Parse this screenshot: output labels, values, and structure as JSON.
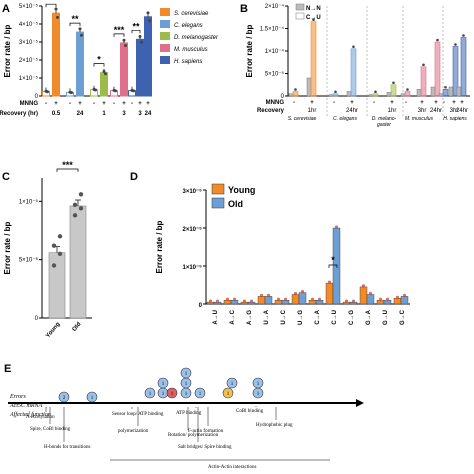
{
  "panels": {
    "A": "A",
    "B": "B",
    "C": "C",
    "D": "D",
    "E": "E"
  },
  "colors": {
    "S. cerevisiae": "#f08a2b",
    "C. elegans": "#6b9fd6",
    "D. melanogaster": "#9dbb4a",
    "M. musculus": "#e06f8b",
    "H. sapiens": "#3d62b0",
    "young": "#f08a2b",
    "old": "#6b9fd6",
    "C_old_bar": "#c8c8c8"
  },
  "chart_data": [
    {
      "panel": "A",
      "type": "bar",
      "ylabel": "Error rate / bp",
      "ylim": [
        0,
        5e-05
      ],
      "yticks": [
        "0",
        "1×10⁻⁵",
        "2×10⁻⁵",
        "3×10⁻⁵",
        "4×10⁻⁵",
        "5×10⁻⁵"
      ],
      "row_labels": {
        "mnng": "MNNG",
        "recovery": "Recovery (hr)"
      },
      "legend": [
        "S. cerevisiae",
        "C. elegans",
        "D. melanogaster",
        "M. musculus",
        "H. sapiens"
      ],
      "bars": [
        {
          "species": "S. cerevisiae",
          "mnng": "-",
          "recovery": "",
          "value": 2.5e-06
        },
        {
          "species": "S. cerevisiae",
          "mnng": "+",
          "recovery": "0.5",
          "value": 4.6e-05
        },
        {
          "species": "C. elegans",
          "mnng": "-",
          "recovery": "",
          "value": 2e-06
        },
        {
          "species": "C. elegans",
          "mnng": "+",
          "recovery": "24",
          "value": 3.55e-05
        },
        {
          "species": "D. melanogaster",
          "mnng": "-",
          "recovery": "",
          "value": 3.5e-06
        },
        {
          "species": "D. melanogaster",
          "mnng": "+",
          "recovery": "1",
          "value": 1.3e-05
        },
        {
          "species": "M. musculus",
          "mnng": "-",
          "recovery": "",
          "value": 3e-06
        },
        {
          "species": "M. musculus",
          "mnng": "+",
          "recovery": "3",
          "value": 2.95e-05
        },
        {
          "species": "H. sapiens",
          "mnng": "-",
          "recovery": "",
          "value": 3e-06
        },
        {
          "species": "H. sapiens",
          "mnng": "+",
          "recovery": "3",
          "value": 3.15e-05
        },
        {
          "species": "H. sapiens",
          "mnng": "+",
          "recovery": "24",
          "value": 4.4e-05
        }
      ],
      "significance": [
        {
          "label": "*",
          "from": 0,
          "to": 1
        },
        {
          "label": "**",
          "from": 2,
          "to": 3
        },
        {
          "label": "*",
          "from": 4,
          "to": 5
        },
        {
          "label": "***",
          "from": 6,
          "to": 7
        },
        {
          "label": "**",
          "from": 8,
          "to": 9
        }
      ]
    },
    {
      "panel": "B",
      "type": "bar",
      "ylabel": "Error rate / bp",
      "ylim": [
        0,
        0.0002
      ],
      "yticks": [
        "0",
        "5×10⁻⁵",
        "1×10⁻⁴",
        "1.5×10⁻⁴",
        "2×10⁻⁴"
      ],
      "legend": [
        "N→N",
        "C→U"
      ],
      "row_labels": {
        "mnng": "MNNG",
        "recovery": "Recovery"
      },
      "groups": [
        {
          "species": "S. cerevisiae",
          "label_top": "",
          "mnng": "-",
          "recovery": "",
          "nn": 5e-06,
          "cu": 1e-05
        },
        {
          "species": "S. cerevisiae",
          "label_top": "",
          "mnng": "+",
          "recovery": "1hr",
          "nn": 4e-05,
          "cu": 0.000165
        },
        {
          "species": "C. elegans",
          "mnng": "-",
          "recovery": "",
          "nn": 3e-06,
          "cu": 5e-06
        },
        {
          "species": "C. elegans",
          "mnng": "+",
          "recovery": "24hr",
          "nn": 1e-05,
          "cu": 0.000105
        },
        {
          "species": "D. melanogaster",
          "mnng": "-",
          "recovery": "",
          "nn": 3e-06,
          "cu": 5e-06
        },
        {
          "species": "D. melanogaster",
          "mnng": "+",
          "recovery": "1hr",
          "nn": 8e-06,
          "cu": 2.5e-05
        },
        {
          "species": "M. musculus",
          "mnng": "-",
          "recovery": "",
          "nn": 5e-06,
          "cu": 1e-05
        },
        {
          "species": "M. musculus",
          "mnng": "+",
          "recovery": "3hr",
          "nn": 1.5e-05,
          "cu": 6.5e-05
        },
        {
          "species": "M. musculus",
          "mnng": "+",
          "recovery": "24hr",
          "nn": 2e-05,
          "cu": 0.00012
        },
        {
          "species": "H. sapiens",
          "mnng": "-",
          "recovery": "",
          "nn": 5e-06,
          "cu": 1.5e-05
        },
        {
          "species": "H. sapiens",
          "mnng": "+",
          "recovery": "3hr",
          "nn": 2e-05,
          "cu": 0.00011
        },
        {
          "species": "H. sapiens",
          "mnng": "+",
          "recovery": "24hr",
          "nn": 2e-05,
          "cu": 0.00013
        }
      ],
      "species_labels": [
        "S. cerevisiae",
        "C. elegans",
        "D. melano-\ngaster",
        "M. musculus",
        "H. sapiens"
      ]
    },
    {
      "panel": "C",
      "type": "bar",
      "ylabel": "Error rate / bp",
      "ylim": [
        0,
        1.2e-05
      ],
      "yticks": [
        "0",
        "5×10⁻⁶",
        "1×10⁻⁵"
      ],
      "categories": [
        "Young",
        "Old"
      ],
      "values": [
        5.6e-06,
        9.6e-06
      ],
      "points": [
        [
          4.5e-06,
          5.5e-06,
          6.2e-06,
          7e-06
        ],
        [
          8.8e-06,
          9.4e-06,
          9.7e-06,
          1.06e-05
        ]
      ],
      "significance": "***"
    },
    {
      "panel": "D",
      "type": "bar",
      "ylabel": "Error rate / bp",
      "ylim": [
        0,
        3e-05
      ],
      "yticks": [
        "0",
        "1×10⁻⁵",
        "2×10⁻⁵",
        "3×10⁻⁵"
      ],
      "legend": [
        "Young",
        "Old"
      ],
      "categories": [
        "A→U",
        "A→C",
        "A→G",
        "U→A",
        "U→C",
        "U→G",
        "C→A",
        "C→U",
        "C→G",
        "G→A",
        "G→U",
        "G→C"
      ],
      "series": [
        {
          "name": "Young",
          "values": [
            5e-07,
            1e-06,
            5e-07,
            2e-06,
            1e-06,
            2.5e-06,
            1e-06,
            5.5e-06,
            5e-07,
            4.5e-06,
            1e-06,
            1.5e-06
          ]
        },
        {
          "name": "Old",
          "values": [
            5e-07,
            1e-06,
            5e-07,
            2e-06,
            1e-06,
            3e-06,
            1e-06,
            2e-05,
            5e-07,
            2.5e-06,
            1e-06,
            2e-06
          ]
        }
      ],
      "significance": {
        "label": "*",
        "category": "C→U"
      }
    }
  ],
  "panelE": {
    "row_labels": [
      "Errors",
      "Act5C mRNA",
      "Affected function"
    ],
    "functions_top": [
      "N-Acetylation",
      "Spire, CoBl binding",
      "H-bonds for transitions",
      "Sensor loop/ ATP binding",
      "polymerization",
      "Rotation/ polymerization",
      "ATP binding",
      "Salt bridges/ Spire binding",
      "F-actin formation",
      "CoBl binding",
      "Hydrophobic plug"
    ],
    "bottom": "Actin-Actin interactions",
    "circles": [
      {
        "label": "2",
        "color": "#9cc1e6"
      },
      {
        "label": "1",
        "color": "#9cc1e6"
      },
      {
        "label": "1",
        "color": "#9cc1e6"
      },
      {
        "label": "1",
        "color": "#9cc1e6"
      },
      {
        "label": "1",
        "color": "#9cc1e6"
      },
      {
        "label": "1",
        "color": "#e06060"
      },
      {
        "label": "1",
        "color": "#9cc1e6"
      },
      {
        "label": "1",
        "color": "#9cc1e6"
      },
      {
        "label": "1",
        "color": "#9cc1e6"
      },
      {
        "label": "1",
        "color": "#9cc1e6"
      },
      {
        "label": "1",
        "color": "#f0c050"
      },
      {
        "label": "1",
        "color": "#9cc1e6"
      },
      {
        "label": "1",
        "color": "#9cc1e6"
      },
      {
        "label": "1",
        "color": "#9cc1e6"
      }
    ]
  }
}
